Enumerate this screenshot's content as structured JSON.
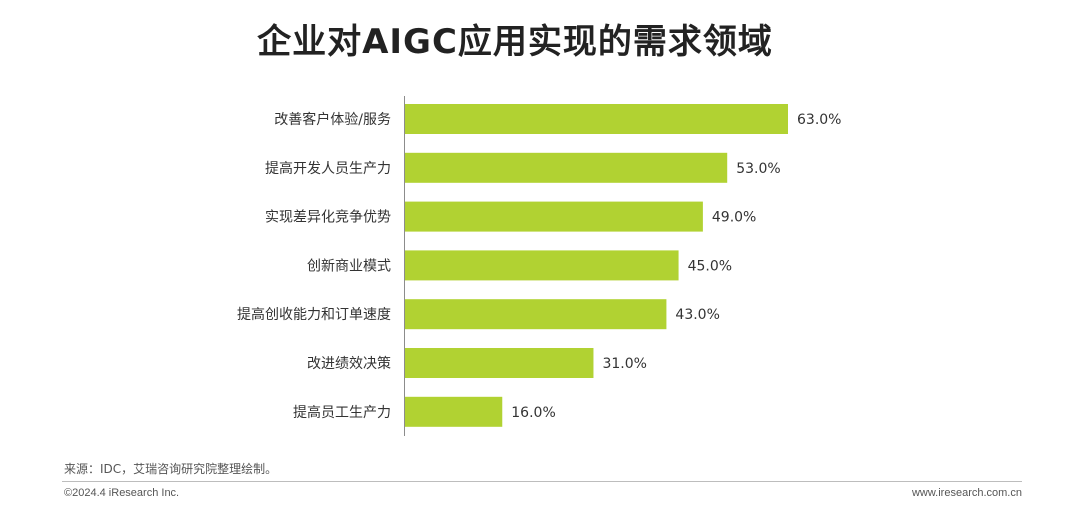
{
  "chart_data": {
    "type": "bar",
    "orientation": "horizontal",
    "title": "企业对AIGC应用实现的需求领域",
    "categories": [
      "改善客户体验/服务",
      "提高开发人员生产力",
      "实现差异化竞争优势",
      "创新商业模式",
      "提高创收能力和订单速度",
      "改进绩效决策",
      "提高员工生产力"
    ],
    "values": [
      63.0,
      53.0,
      49.0,
      45.0,
      43.0,
      31.0,
      16.0
    ],
    "value_labels": [
      "63.0%",
      "53.0%",
      "49.0%",
      "45.0%",
      "43.0%",
      "31.0%",
      "16.0%"
    ],
    "unit": "%",
    "xlim": [
      0,
      63
    ],
    "grid": false,
    "bar_color": "#b1d232"
  },
  "source": "来源：IDC，艾瑞咨询研究院整理绘制。",
  "footer": {
    "copyright": "©2024.4 iResearch Inc.",
    "website": "www.iresearch.com.cn"
  }
}
